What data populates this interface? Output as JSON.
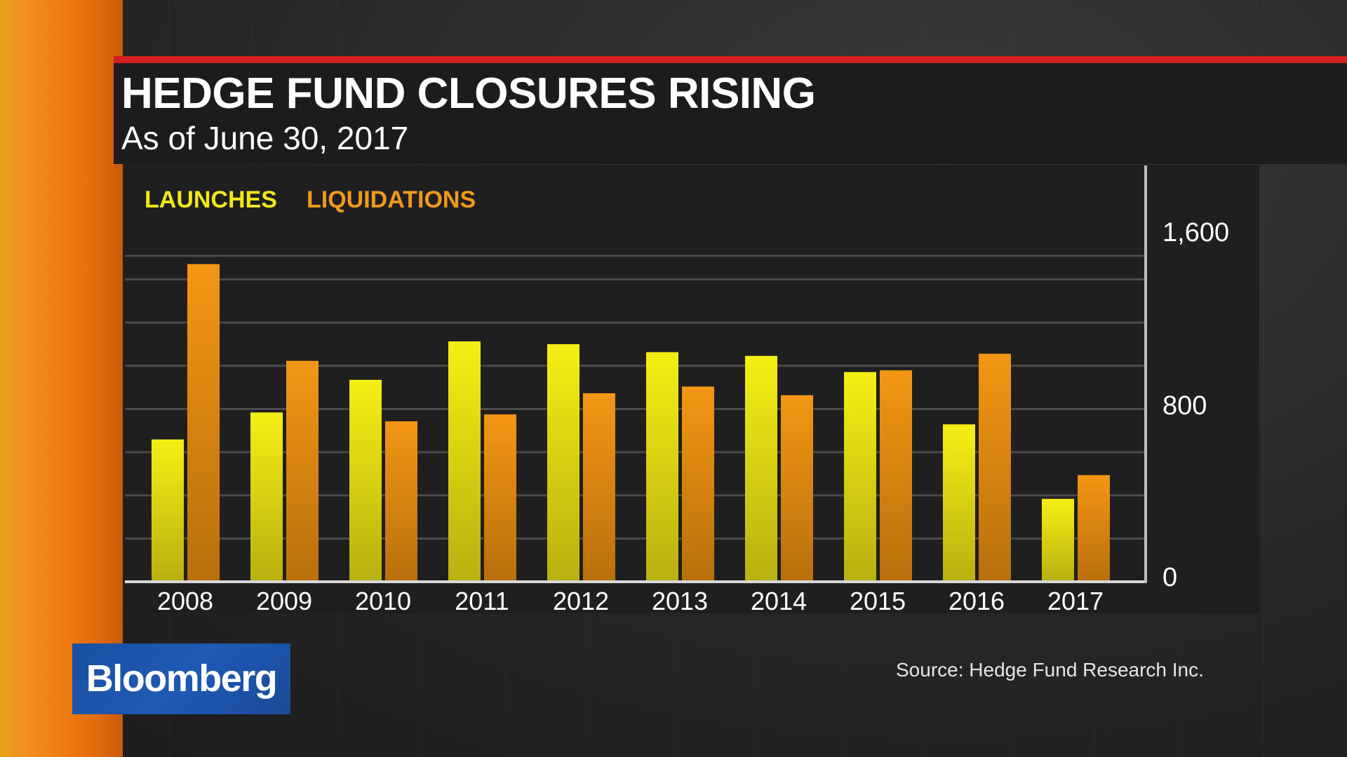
{
  "header": {
    "title": "HEDGE FUND CLOSURES RISING",
    "subtitle": "As of June 30, 2017"
  },
  "branding": {
    "logo_text": "Bloomberg"
  },
  "source_note": "Source: Hedge Fund Research Inc.",
  "colors": {
    "launches": "#f2e81a",
    "liquidations": "#f09a1c",
    "accent_rule": "#d0201e",
    "logo_bg": "#1e5ab5"
  },
  "chart_data": {
    "type": "bar",
    "title": "HEDGE FUND CLOSURES RISING",
    "subtitle": "As of June 30, 2017",
    "categories": [
      "2008",
      "2009",
      "2010",
      "2011",
      "2012",
      "2013",
      "2014",
      "2015",
      "2016",
      "2017"
    ],
    "series": [
      {
        "name": "LAUNCHES",
        "color": "#f2e81a",
        "values": [
          659,
          784,
          935,
          1113,
          1100,
          1063,
          1046,
          971,
          729,
          384
        ]
      },
      {
        "name": "LIQUIDATIONS",
        "color": "#f09a1c",
        "values": [
          1471,
          1023,
          743,
          775,
          873,
          904,
          864,
          979,
          1056,
          494
        ]
      }
    ],
    "y_axis": {
      "position": "right",
      "ticks": [
        "0",
        "800",
        "1,600"
      ],
      "tick_values": [
        0,
        800,
        1600
      ],
      "ylim": [
        0,
        1600
      ]
    },
    "gridlines": true,
    "legend": {
      "placement": "top-left",
      "entries": [
        "LAUNCHES",
        "LIQUIDATIONS"
      ]
    },
    "xlabel": "",
    "ylabel": ""
  }
}
